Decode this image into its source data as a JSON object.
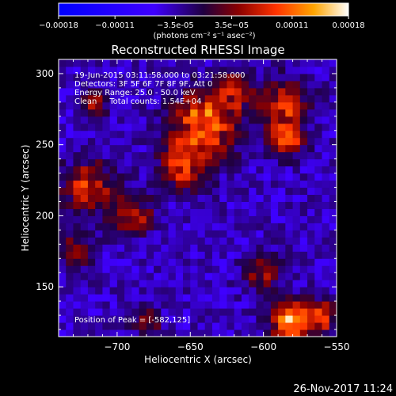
{
  "colorbar": {
    "ticks": [
      "-0.00018",
      "-0.00011",
      "-3.5e-05",
      "3.5e-05",
      "0.00011",
      "0.00018"
    ],
    "unit": "(photons cm⁻² s⁻¹ asec⁻²)"
  },
  "chart_data": {
    "type": "heatmap",
    "title": "Reconstructed RHESSI Image",
    "xlabel": "Heliocentric X (arcsec)",
    "ylabel": "Heliocentric Y (arcsec)",
    "xlim": [
      -740,
      -550
    ],
    "ylim": [
      115,
      310
    ],
    "xticks": [
      -700,
      -650,
      -600,
      -550
    ],
    "xtick_labels": [
      "-700",
      "-650",
      "-600",
      "-550"
    ],
    "yticks": [
      150,
      200,
      250,
      300
    ],
    "ytick_labels": [
      "150",
      "200",
      "250",
      "300"
    ],
    "zlim": [
      -0.00018,
      0.00018
    ],
    "annotations": [
      "19-Jun-2015 03:11:58.000 to 03:21:58.000",
      "Detectors: 3F 5F 6F 7F 8F 9F, Att 0",
      "Energy Range: 25.0 - 50.0 keV",
      "Clean     Total counts: 1.54E+04"
    ],
    "peak_label": "Position of Peak = [-582,125]",
    "peak": [
      -582,
      125
    ],
    "bright_sources": [
      {
        "x": -640,
        "y": 265,
        "r": 22,
        "a": 0.00016
      },
      {
        "x": -655,
        "y": 235,
        "r": 16,
        "a": 0.00012
      },
      {
        "x": -585,
        "y": 280,
        "r": 16,
        "a": 0.00012
      },
      {
        "x": -585,
        "y": 255,
        "r": 12,
        "a": 0.00013
      },
      {
        "x": -720,
        "y": 220,
        "r": 18,
        "a": 0.00011
      },
      {
        "x": -690,
        "y": 200,
        "r": 14,
        "a": 0.0001
      },
      {
        "x": -730,
        "y": 175,
        "r": 12,
        "a": 8e-05
      },
      {
        "x": -582,
        "y": 125,
        "r": 14,
        "a": 0.00018
      },
      {
        "x": -600,
        "y": 160,
        "r": 12,
        "a": 9e-05
      },
      {
        "x": -560,
        "y": 130,
        "r": 12,
        "a": 0.00012
      },
      {
        "x": -680,
        "y": 125,
        "r": 10,
        "a": 7e-05
      },
      {
        "x": -715,
        "y": 280,
        "r": 10,
        "a": 9e-05
      },
      {
        "x": -620,
        "y": 290,
        "r": 12,
        "a": 0.0001
      }
    ]
  },
  "footer": {
    "date": "26-Nov-2017 11:24"
  }
}
